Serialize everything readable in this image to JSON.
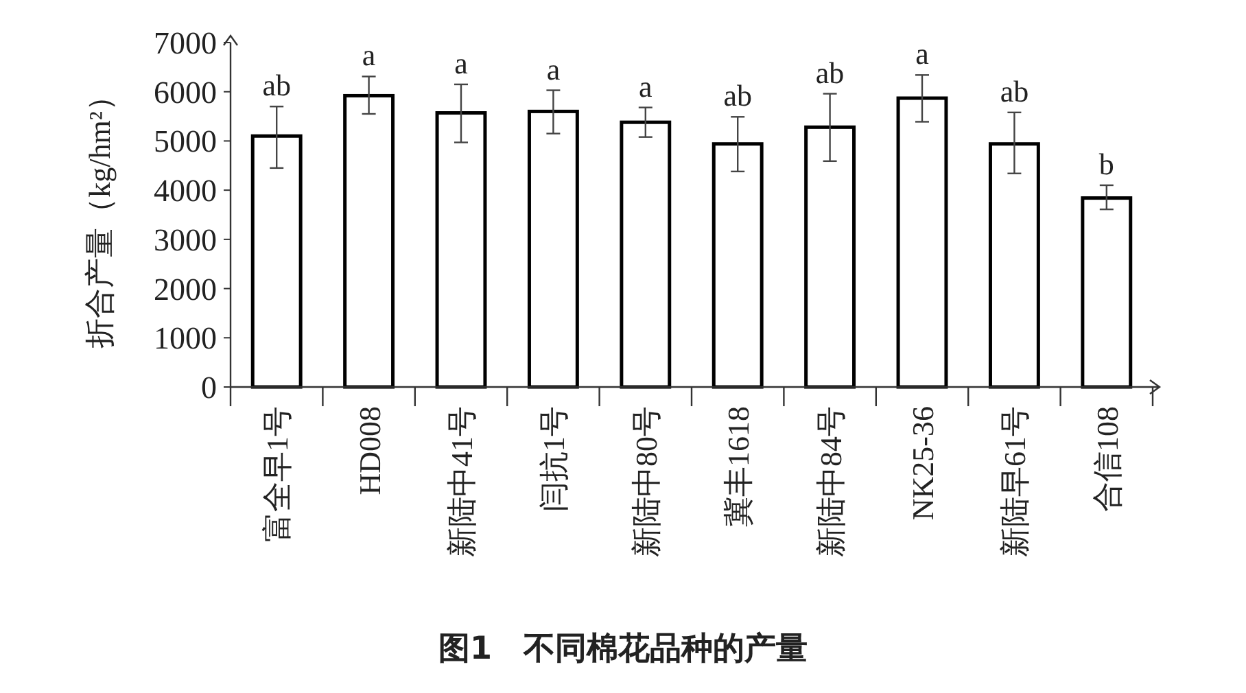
{
  "chart_data": {
    "type": "bar",
    "title": "图1　不同棉花品种的产量",
    "ylabel": "折合产量（kg/hm²）",
    "categories": [
      "富全早1号",
      "HD008",
      "新陆中41号",
      "闫抗1号",
      "新陆中80号",
      "冀丰1618",
      "新陆中84号",
      "NK25-36",
      "新陆早61号",
      "合信108"
    ],
    "values": [
      5100,
      5920,
      5570,
      5600,
      5380,
      4940,
      5280,
      5870,
      4940,
      3840
    ],
    "errors": [
      [
        4450,
        5700
      ],
      [
        5550,
        6310
      ],
      [
        4970,
        6150
      ],
      [
        5150,
        6030
      ],
      [
        5080,
        5680
      ],
      [
        4380,
        5490
      ],
      [
        4590,
        5960
      ],
      [
        5390,
        6340
      ],
      [
        4340,
        5580
      ],
      [
        3610,
        4100
      ]
    ],
    "color": "#ffffff",
    "ylim": [
      0,
      7000
    ],
    "yticks": [
      0,
      1000,
      2000,
      3000,
      4000,
      5000,
      6000,
      7000
    ],
    "annotations": [
      {
        "text": "ab",
        "x": "富全早1号",
        "y": 5700
      },
      {
        "text": "a",
        "x": "HD008",
        "y": 6310
      },
      {
        "text": "a",
        "x": "新陆中41号",
        "y": 6150
      },
      {
        "text": "a",
        "x": "闫抗1号",
        "y": 6030
      },
      {
        "text": "a",
        "x": "新陆中80号",
        "y": 5680
      },
      {
        "text": "ab",
        "x": "冀丰1618",
        "y": 5490
      },
      {
        "text": "ab",
        "x": "新陆中84号",
        "y": 5960
      },
      {
        "text": "a",
        "x": "NK25-36",
        "y": 6340
      },
      {
        "text": "ab",
        "x": "新陆早61号",
        "y": 5580
      },
      {
        "text": "b",
        "x": "合信108",
        "y": 4100
      }
    ]
  }
}
